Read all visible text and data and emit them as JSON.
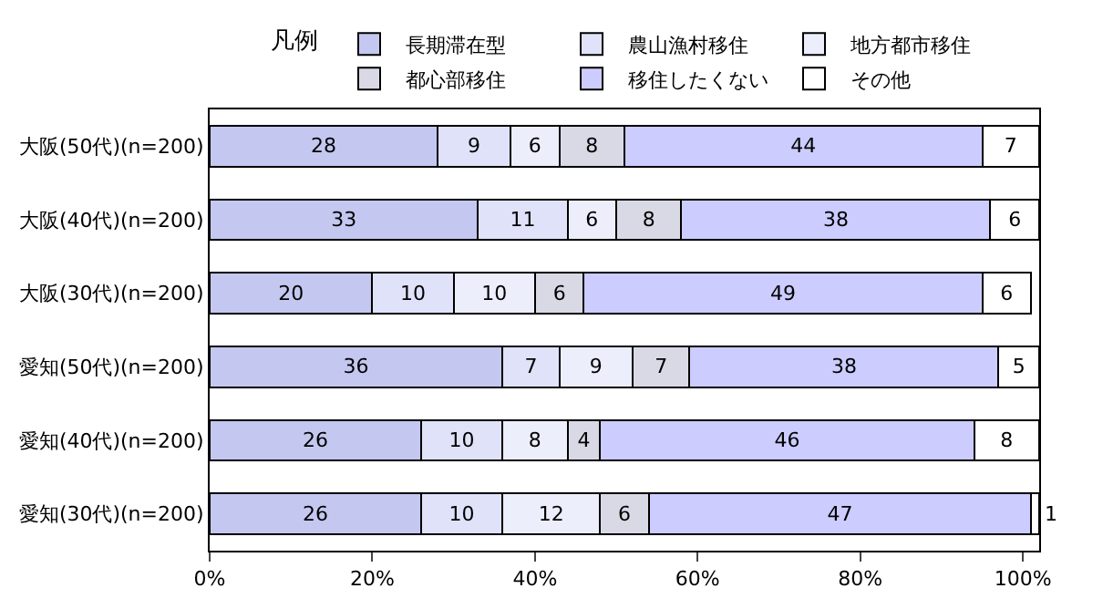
{
  "chart_data": {
    "type": "bar",
    "orientation": "horizontal",
    "stacked": true,
    "data_labels": true,
    "legend": "top",
    "legend_title": "凡例",
    "categories": [
      "大阪(50代)(n=200)",
      "大阪(40代)(n=200)",
      "大阪(30代)(n=200)",
      "愛知(50代)(n=200)",
      "愛知(40代)(n=200)",
      "愛知(30代)(n=200)"
    ],
    "xlim": [
      0,
      102
    ],
    "xticks": [
      {
        "value": 0,
        "label": "0%"
      },
      {
        "value": 20,
        "label": "20%"
      },
      {
        "value": 40,
        "label": "40%"
      },
      {
        "value": 60,
        "label": "60%"
      },
      {
        "value": 80,
        "label": "80%"
      },
      {
        "value": 100,
        "label": "100%"
      }
    ],
    "series": [
      {
        "name": "長期滞在型",
        "color": "#c4c8f0",
        "values": [
          28,
          33,
          20,
          36,
          26,
          26
        ]
      },
      {
        "name": "農山漁村移住",
        "color": "#dfe2f9",
        "values": [
          9,
          11,
          10,
          7,
          10,
          10
        ]
      },
      {
        "name": "地方都市移住",
        "color": "#eceefc",
        "values": [
          6,
          6,
          10,
          9,
          8,
          12
        ]
      },
      {
        "name": "都心部移住",
        "color": "#d9d9e6",
        "values": [
          8,
          8,
          6,
          7,
          4,
          6
        ]
      },
      {
        "name": "移住したくない",
        "color": "#ccccff",
        "values": [
          44,
          38,
          49,
          38,
          46,
          47
        ]
      },
      {
        "name": "その他",
        "color": "#ffffff",
        "values": [
          7,
          6,
          6,
          5,
          8,
          1
        ]
      }
    ]
  }
}
